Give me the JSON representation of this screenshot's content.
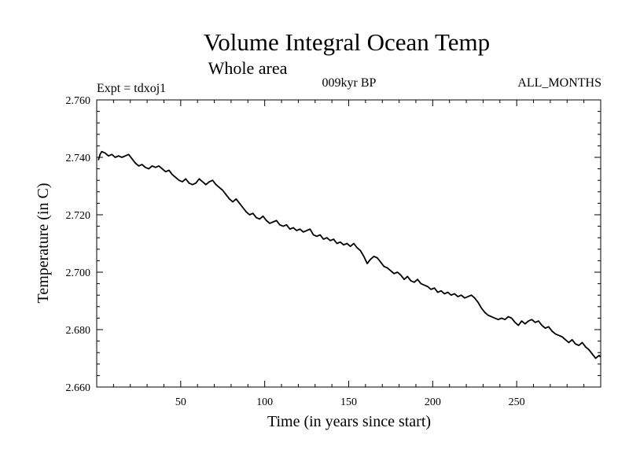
{
  "chart_data": {
    "type": "line",
    "title": "Volume Integral Ocean Temp",
    "subtitle": "Whole area",
    "annotations": {
      "left": "Expt = tdxoj1",
      "center": "009kyr BP",
      "right": "ALL_MONTHS"
    },
    "xlabel": "Time (in years since start)",
    "ylabel": "Temperature (in C)",
    "xlim": [
      0,
      300
    ],
    "ylim": [
      2.66,
      2.76
    ],
    "xticks": [
      50,
      100,
      150,
      200,
      250
    ],
    "xtick_labels": [
      "50",
      "100",
      "150",
      "200",
      "250"
    ],
    "yticks": [
      2.66,
      2.68,
      2.7,
      2.72,
      2.74,
      2.76
    ],
    "ytick_labels": [
      "2.660",
      "2.680",
      "2.700",
      "2.720",
      "2.740",
      "2.760"
    ],
    "grid": false,
    "series": [
      {
        "name": "Volume Integral Ocean Temp",
        "x": [
          1,
          2,
          3,
          5,
          7,
          9,
          11,
          13,
          15,
          17,
          19,
          21,
          23,
          25,
          27,
          29,
          31,
          33,
          35,
          37,
          39,
          41,
          43,
          45,
          47,
          49,
          51,
          53,
          55,
          57,
          59,
          61,
          63,
          65,
          67,
          69,
          71,
          73,
          75,
          77,
          79,
          81,
          83,
          85,
          87,
          89,
          91,
          93,
          95,
          97,
          99,
          101,
          103,
          105,
          107,
          109,
          111,
          113,
          115,
          117,
          119,
          121,
          123,
          125,
          127,
          129,
          131,
          133,
          135,
          137,
          139,
          141,
          143,
          145,
          147,
          149,
          151,
          153,
          155,
          157,
          159,
          161,
          163,
          165,
          167,
          169,
          171,
          173,
          175,
          177,
          179,
          181,
          183,
          185,
          187,
          189,
          191,
          193,
          195,
          197,
          199,
          201,
          203,
          205,
          207,
          209,
          211,
          213,
          215,
          217,
          219,
          221,
          223,
          225,
          227,
          229,
          231,
          233,
          235,
          237,
          239,
          241,
          243,
          245,
          247,
          249,
          251,
          253,
          255,
          257,
          259,
          261,
          263,
          265,
          267,
          269,
          271,
          273,
          275,
          277,
          279,
          281,
          283,
          285,
          287,
          289,
          291,
          293,
          295,
          297,
          299,
          300
        ],
        "values": [
          2.739,
          2.741,
          2.742,
          2.7415,
          2.7405,
          2.741,
          2.74,
          2.7405,
          2.74,
          2.7405,
          2.741,
          2.7395,
          2.738,
          2.737,
          2.7375,
          2.7365,
          2.736,
          2.737,
          2.7365,
          2.737,
          2.736,
          2.735,
          2.7355,
          2.734,
          2.733,
          2.732,
          2.7315,
          2.7325,
          2.731,
          2.7305,
          2.731,
          2.7325,
          2.7315,
          2.7305,
          2.7315,
          2.732,
          2.7305,
          2.7295,
          2.7285,
          2.727,
          2.7255,
          2.7245,
          2.7255,
          2.724,
          2.7225,
          2.721,
          2.72,
          2.7205,
          2.719,
          2.7185,
          2.7195,
          2.718,
          2.717,
          2.7175,
          2.718,
          2.7165,
          2.716,
          2.7165,
          2.715,
          2.7155,
          2.7145,
          2.715,
          2.714,
          2.7145,
          2.715,
          2.713,
          2.7125,
          2.713,
          2.7115,
          2.712,
          2.711,
          2.7115,
          2.71,
          2.7105,
          2.7095,
          2.71,
          2.709,
          2.71,
          2.7085,
          2.7075,
          2.7055,
          2.703,
          2.7045,
          2.7055,
          2.705,
          2.7035,
          2.702,
          2.7015,
          2.7005,
          2.6995,
          2.7,
          2.699,
          2.6975,
          2.6985,
          2.697,
          2.6965,
          2.6975,
          2.696,
          2.6955,
          2.695,
          2.694,
          2.6945,
          2.693,
          2.6935,
          2.6925,
          2.693,
          2.692,
          2.6925,
          2.6915,
          2.692,
          2.691,
          2.6915,
          2.692,
          2.691,
          2.6895,
          2.6875,
          2.686,
          2.685,
          2.6845,
          2.684,
          2.6835,
          2.684,
          2.6835,
          2.6845,
          2.684,
          2.6825,
          2.6815,
          2.683,
          2.682,
          2.683,
          2.6835,
          2.6825,
          2.683,
          2.6815,
          2.6805,
          2.681,
          2.6795,
          2.6785,
          2.678,
          2.6775,
          2.6765,
          2.6755,
          2.6765,
          2.675,
          2.6745,
          2.6755,
          2.674,
          2.673,
          2.6715,
          2.67,
          2.671,
          2.6705
        ]
      }
    ]
  }
}
